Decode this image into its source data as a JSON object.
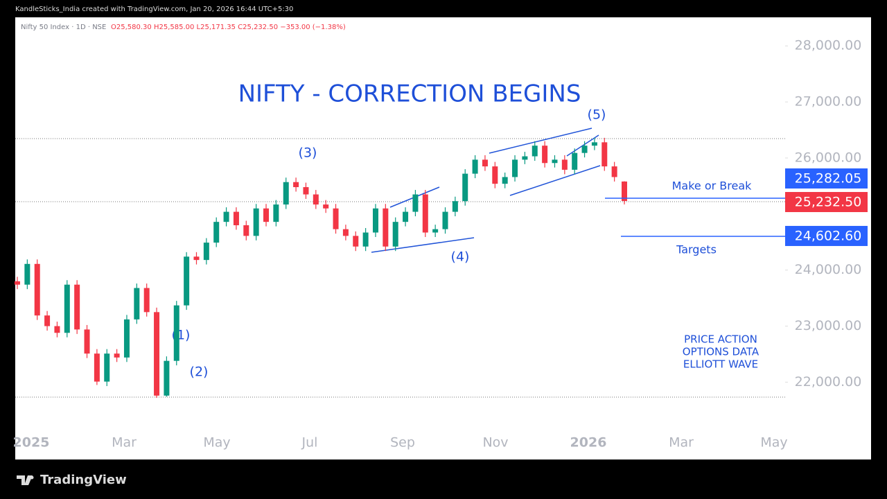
{
  "header": "KandleSticks_India created with TradingView.com, Jan 20, 2026 16:44 UTC+5:30",
  "symbol": "Nifty 50 Index · 1D · NSE",
  "ohlc_text": "O25,580.30 H25,585.00 L25,171.35 C25,232.50 −353.00 (−1.38%)",
  "footer": "TradingView",
  "chart_data": {
    "type": "candlestick",
    "title": "NIFTY - CORRECTION BEGINS",
    "ylim": [
      20620,
      28510
    ],
    "yticks": [
      {
        "value": 22000,
        "label": "22,000.00"
      },
      {
        "value": 23000,
        "label": "23,000.00"
      },
      {
        "value": 24000,
        "label": "24,000.00"
      },
      {
        "value": 26000,
        "label": "26,000.00"
      },
      {
        "value": 27000,
        "label": "27,000.00"
      },
      {
        "value": 28000,
        "label": "28,000.00"
      }
    ],
    "x_labels": [
      "2025",
      "Mar",
      "May",
      "Jul",
      "Sep",
      "Nov",
      "2026",
      "Mar",
      "May"
    ],
    "up_color": "#089981",
    "down_color": "#f23645",
    "open": [
      23800,
      23740,
      24110,
      23190,
      23000,
      22880,
      23740,
      22940,
      22510,
      22010,
      22510,
      22440,
      23120,
      23680,
      23250,
      21760,
      22380,
      23370,
      24240,
      24180,
      24490,
      24860,
      25040,
      24800,
      24610,
      25100,
      24860,
      25170,
      25570,
      25480,
      25350,
      25170,
      25100,
      24730,
      24610,
      24420,
      24670,
      25100,
      24420,
      24860,
      25040,
      25350,
      24670,
      24730,
      25040,
      25230,
      25720,
      25970,
      25850,
      25540,
      25660,
      25970,
      26030,
      26220,
      25910,
      25970,
      25790,
      26090,
      26220,
      26280,
      25850,
      25580.3
    ],
    "high": [
      23880,
      24190,
      24190,
      23270,
      23080,
      23820,
      23820,
      23020,
      22590,
      22590,
      22590,
      23200,
      23760,
      23760,
      23330,
      22460,
      23450,
      24320,
      24320,
      24570,
      24940,
      25120,
      25120,
      24880,
      25180,
      25180,
      25250,
      25650,
      25650,
      25560,
      25430,
      25250,
      25180,
      24810,
      24690,
      24750,
      25180,
      25180,
      24940,
      25120,
      25430,
      25430,
      24810,
      25120,
      25310,
      25800,
      26050,
      26050,
      25930,
      25740,
      26050,
      26110,
      26300,
      26300,
      26050,
      26050,
      26170,
      26300,
      26360,
      26360,
      25930,
      25585
    ],
    "low": [
      23660,
      23660,
      23110,
      22920,
      22800,
      22800,
      22860,
      22430,
      21950,
      21930,
      22360,
      22360,
      23040,
      23170,
      21720,
      21740,
      22300,
      23290,
      24100,
      24100,
      24410,
      24780,
      24720,
      24530,
      24530,
      24780,
      24780,
      25090,
      25400,
      25270,
      25090,
      25020,
      24650,
      24530,
      24340,
      24340,
      24590,
      24340,
      24340,
      24780,
      24960,
      24590,
      24590,
      24650,
      24960,
      25150,
      25640,
      25770,
      25460,
      25460,
      25580,
      25890,
      25950,
      25830,
      25830,
      25710,
      25710,
      26010,
      26140,
      25770,
      25580,
      25171.35
    ],
    "close": [
      23740,
      24110,
      23190,
      23000,
      22880,
      23740,
      22940,
      22510,
      22010,
      22510,
      22440,
      23120,
      23680,
      23250,
      21760,
      22380,
      23370,
      24240,
      24180,
      24490,
      24860,
      25040,
      24800,
      24610,
      25100,
      24860,
      25170,
      25570,
      25480,
      25350,
      25170,
      25100,
      24730,
      24610,
      24420,
      24670,
      25100,
      24420,
      24860,
      25040,
      25350,
      24670,
      24730,
      25040,
      25230,
      25720,
      25970,
      25850,
      25540,
      25660,
      25970,
      26030,
      26220,
      25910,
      25970,
      25790,
      26090,
      26220,
      26280,
      25850,
      25660,
      25232.5
    ],
    "levels": [
      {
        "value": 25282.05,
        "label": "25,282.05",
        "color": "#2962ff",
        "text": "Make or Break"
      },
      {
        "value": 25232.5,
        "label": "25,232.50",
        "color": "#f23645"
      },
      {
        "value": 24602.6,
        "label": "24,602.60",
        "color": "#2962ff",
        "text": "Targets"
      }
    ],
    "waves": [
      "(1)",
      "(2)",
      "(3)",
      "(4)",
      "(5)"
    ],
    "notes": [
      "PRICE ACTION",
      "OPTIONS DATA",
      "ELLIOTT WAVE"
    ]
  }
}
